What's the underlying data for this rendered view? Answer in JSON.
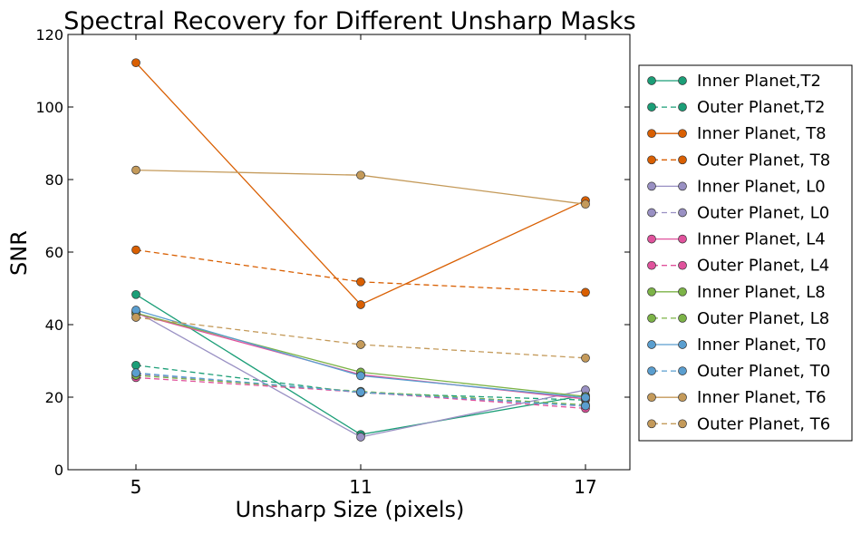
{
  "chart_data": {
    "type": "line",
    "title": "Spectral Recovery for Different Unsharp Masks",
    "xlabel": "Unsharp Size (pixels)",
    "ylabel": "SNR",
    "x": [
      5,
      11,
      17
    ],
    "x_tick_labels": [
      "5",
      "11",
      "17"
    ],
    "ylim": [
      0,
      120
    ],
    "y_ticks": [
      0,
      20,
      40,
      60,
      80,
      100,
      120
    ],
    "y_tick_labels": [
      "0",
      "20",
      "40",
      "60",
      "80",
      "100",
      "120"
    ],
    "grid": false,
    "legend_position": "right, outside plot",
    "series": [
      {
        "name": "Inner Planet,T2",
        "color": "#1b9e77",
        "style": "solid",
        "values": [
          48.3,
          9.7,
          20.5
        ]
      },
      {
        "name": "Outer Planet,T2",
        "color": "#1b9e77",
        "style": "dashed",
        "values": [
          28.8,
          21.2,
          19.2
        ]
      },
      {
        "name": "Inner Planet, T8",
        "color": "#d95f02",
        "style": "solid",
        "values": [
          112.2,
          45.5,
          74.2
        ]
      },
      {
        "name": "Outer Planet, T8",
        "color": "#d95f02",
        "style": "dashed",
        "values": [
          60.6,
          51.8,
          48.9
        ]
      },
      {
        "name": "Inner Planet, L0",
        "color": "#9990c3",
        "style": "solid",
        "values": [
          43.6,
          9.0,
          22.0
        ]
      },
      {
        "name": "Outer Planet, L0",
        "color": "#9990c3",
        "style": "dashed",
        "values": [
          26.4,
          21.3,
          17.5
        ]
      },
      {
        "name": "Inner Planet, L4",
        "color": "#e0529c",
        "style": "solid",
        "values": [
          43.0,
          26.2,
          19.5
        ]
      },
      {
        "name": "Outer Planet, L4",
        "color": "#e0529c",
        "style": "dashed",
        "values": [
          25.4,
          21.4,
          16.9
        ]
      },
      {
        "name": "Inner Planet, L8",
        "color": "#7cb347",
        "style": "solid",
        "values": [
          43.2,
          26.9,
          20.2
        ]
      },
      {
        "name": "Outer Planet, L8",
        "color": "#7cb347",
        "style": "dashed",
        "values": [
          26.0,
          21.6,
          17.9
        ]
      },
      {
        "name": "Inner Planet, T0",
        "color": "#5a9ecf",
        "style": "solid",
        "values": [
          44.0,
          25.9,
          19.9
        ]
      },
      {
        "name": "Outer Planet, T0",
        "color": "#5a9ecf",
        "style": "dashed",
        "values": [
          26.7,
          21.4,
          17.6
        ]
      },
      {
        "name": "Inner Planet, T6",
        "color": "#c49a5a",
        "style": "solid",
        "values": [
          82.6,
          81.2,
          73.2
        ]
      },
      {
        "name": "Outer Planet, T6",
        "color": "#c49a5a",
        "style": "dashed",
        "values": [
          42.0,
          34.5,
          30.8
        ]
      }
    ]
  }
}
